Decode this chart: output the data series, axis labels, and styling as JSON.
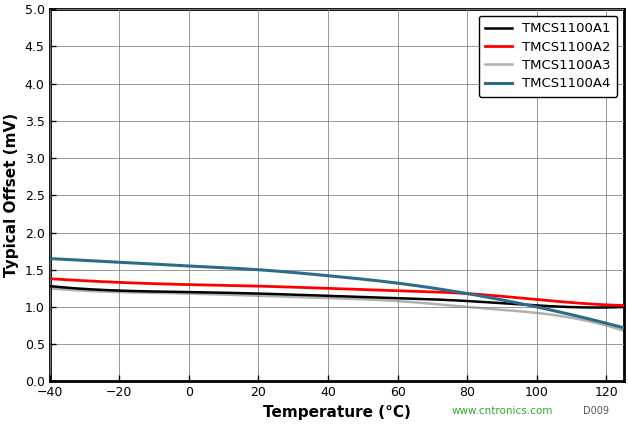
{
  "xlabel": "Temperature (°C)",
  "ylabel": "Typical Offset (mV)",
  "xlim": [
    -40,
    125
  ],
  "ylim": [
    0,
    5
  ],
  "xticks": [
    -40,
    -20,
    0,
    20,
    40,
    60,
    80,
    100,
    120
  ],
  "yticks": [
    0,
    0.5,
    1,
    1.5,
    2,
    2.5,
    3,
    3.5,
    4,
    4.5,
    5
  ],
  "watermark": "www.cntronics.com",
  "watermark_color": "#33aa33",
  "fignum": "D009",
  "fignum_color": "#555555",
  "series": [
    {
      "label": "TMCS1100A1",
      "color": "#000000",
      "linewidth": 1.8,
      "zorder": 3,
      "x": [
        -40,
        -20,
        0,
        20,
        40,
        60,
        80,
        100,
        125
      ],
      "y": [
        1.28,
        1.22,
        1.2,
        1.18,
        1.15,
        1.12,
        1.08,
        1.02,
        1.0
      ]
    },
    {
      "label": "TMCS1100A2",
      "color": "#ff0000",
      "linewidth": 2.0,
      "zorder": 4,
      "x": [
        -40,
        -20,
        0,
        20,
        40,
        60,
        80,
        100,
        125
      ],
      "y": [
        1.38,
        1.33,
        1.3,
        1.28,
        1.25,
        1.22,
        1.18,
        1.1,
        1.02
      ]
    },
    {
      "label": "TMCS1100A3",
      "color": "#b0b0b0",
      "linewidth": 1.8,
      "zorder": 2,
      "x": [
        -40,
        -20,
        0,
        20,
        40,
        60,
        80,
        100,
        125
      ],
      "y": [
        1.25,
        1.2,
        1.18,
        1.15,
        1.12,
        1.08,
        1.0,
        0.92,
        0.68
      ]
    },
    {
      "label": "TMCS1100A4",
      "color": "#2e6b8a",
      "linewidth": 2.2,
      "zorder": 5,
      "x": [
        -40,
        -20,
        0,
        20,
        40,
        60,
        80,
        100,
        125
      ],
      "y": [
        1.65,
        1.6,
        1.55,
        1.5,
        1.42,
        1.32,
        1.18,
        1.0,
        0.72
      ]
    }
  ],
  "legend_loc": "upper right",
  "legend_fontsize": 9.5,
  "tick_fontsize": 9,
  "label_fontsize": 11,
  "figure_facecolor": "#ffffff",
  "axes_facecolor": "#ffffff",
  "grid_color": "#888888",
  "grid_linewidth": 0.6,
  "spine_linewidth": 2.0,
  "figure_width": 6.28,
  "figure_height": 4.24
}
